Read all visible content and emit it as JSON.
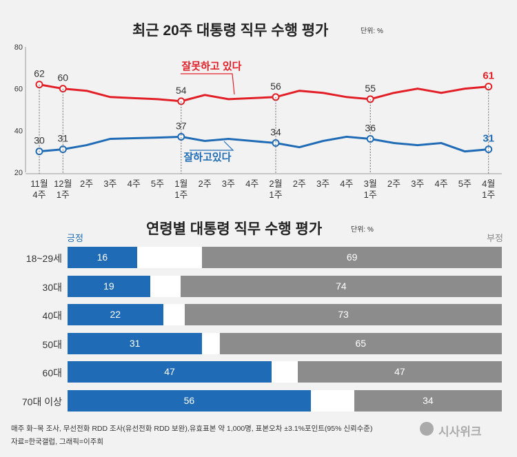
{
  "line_section": {
    "title": "최근 20주 대통령 직무 수행 평가",
    "unit": "단위: %"
  },
  "bar_section": {
    "title": "연령별 대통령 직무 수행 평가",
    "unit": "단위: %",
    "positive_label": "긍정",
    "negative_label": "부정"
  },
  "footer": {
    "line1": "매주 화~목 조사, 무선전화 RDD 조사(유선전화 RDD 보완),유효표본 약 1,000명, 표본오차 ±3.1%포인트(95% 신뢰수준)",
    "line2": "자료=한국갤럽, 그래픽=이주희",
    "logo": "시사위크"
  },
  "colors": {
    "positive": "#1f6bb5",
    "negative": "#e21f26",
    "negative_bar": "#8c8c8c",
    "background": "#f2f2f2"
  },
  "chart_data": [
    {
      "type": "line",
      "title": "최근 20주 대통령 직무 수행 평가",
      "ylim": [
        20,
        80
      ],
      "yticks": [
        "20",
        "40",
        "60",
        "80"
      ],
      "grid": false,
      "categories": [
        "11월\n4주",
        "12월\n1주",
        "2주",
        "3주",
        "4주",
        "5주",
        "1월\n1주",
        "2주",
        "3주",
        "4주",
        "2월\n1주",
        "2주",
        "3주",
        "4주",
        "3월\n1주",
        "2주",
        "3주",
        "4주",
        "5주",
        "4월\n1주"
      ],
      "series": [
        {
          "name": "잘못하고 있다",
          "color": "#e21f26",
          "values": [
            62,
            60,
            59,
            56,
            55.5,
            55,
            54,
            57,
            55,
            55.5,
            56,
            59,
            58,
            56,
            55,
            58,
            60,
            58,
            60,
            61
          ],
          "labels": [
            "62",
            "60",
            "",
            "",
            "",
            "",
            "54",
            "",
            "",
            "",
            "56",
            "",
            "",
            "",
            "55",
            "",
            "",
            "",
            "",
            "61"
          ]
        },
        {
          "name": "잘하고있다",
          "color": "#1f6bb5",
          "values": [
            30,
            31,
            33,
            36,
            36.3,
            36.6,
            37,
            35,
            36,
            35,
            34,
            32,
            35,
            37,
            36,
            34,
            33,
            34,
            30,
            31
          ],
          "labels": [
            "30",
            "31",
            "",
            "",
            "",
            "",
            "37",
            "",
            "",
            "",
            "34",
            "",
            "",
            "",
            "36",
            "",
            "",
            "",
            "",
            "31"
          ]
        }
      ]
    },
    {
      "type": "bar",
      "title": "연령별 대통령 직무 수행 평가",
      "categories": [
        "18~29세",
        "30대",
        "40대",
        "50대",
        "60대",
        "70대 이상"
      ],
      "series": [
        {
          "name": "긍정",
          "values": [
            16,
            19,
            22,
            31,
            47,
            56
          ]
        },
        {
          "name": "부정",
          "values": [
            69,
            74,
            73,
            65,
            47,
            34
          ]
        }
      ]
    }
  ]
}
